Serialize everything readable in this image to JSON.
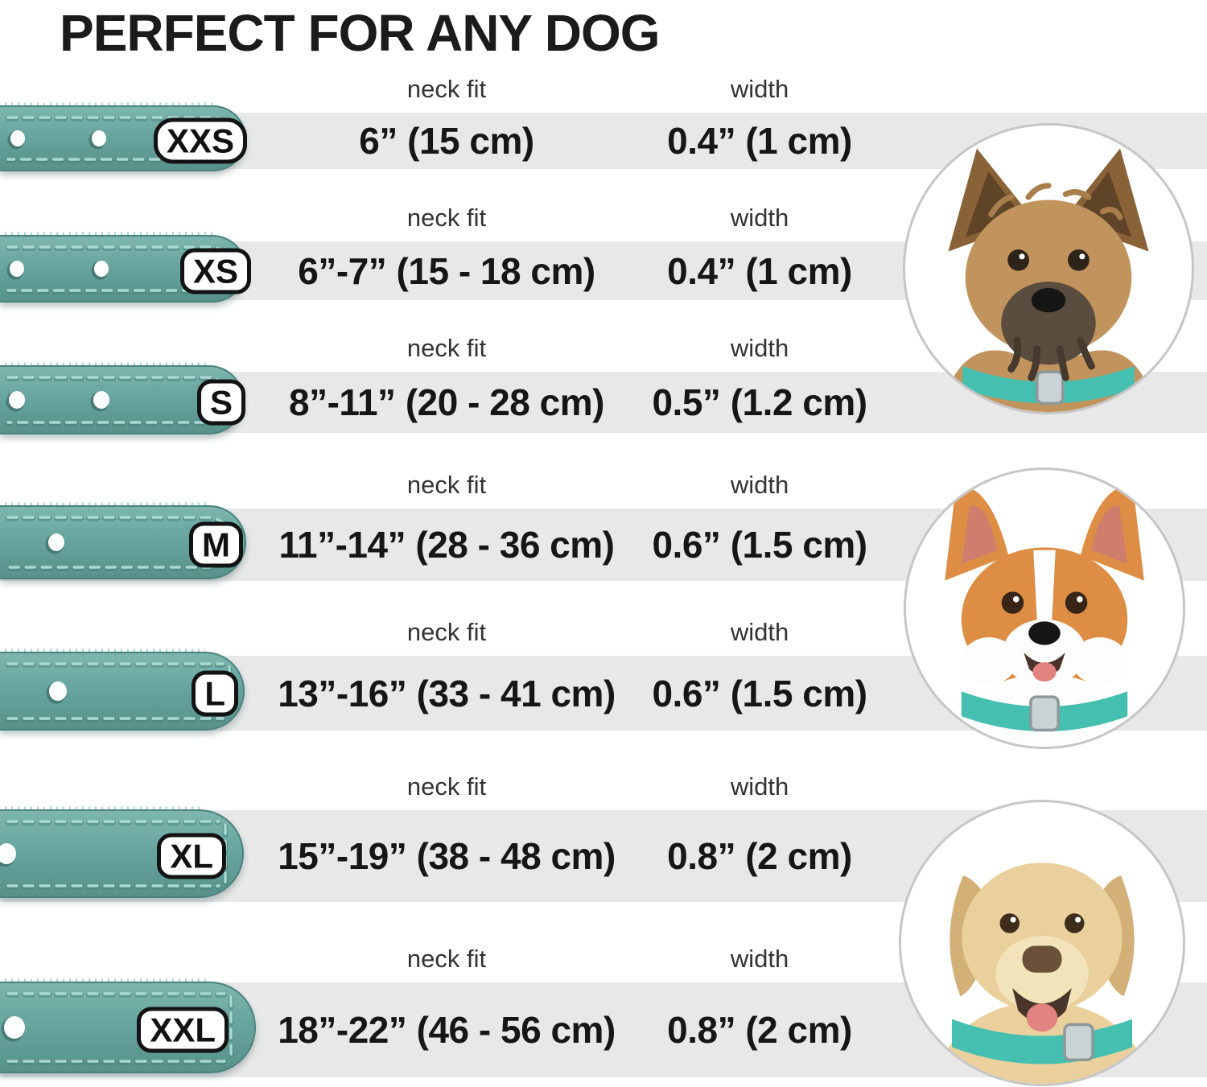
{
  "title": "PERFECT FOR ANY DOG",
  "columns": {
    "neck_fit": "neck fit",
    "width": "width"
  },
  "sizes": [
    {
      "label": "XXS",
      "neck_fit": "6” (15 cm)",
      "width": "0.4” (1 cm)"
    },
    {
      "label": "XS",
      "neck_fit": "6”-7” (15 - 18 cm)",
      "width": "0.4” (1 cm)"
    },
    {
      "label": "S",
      "neck_fit": "8”-11” (20 - 28 cm)",
      "width": "0.5” (1.2 cm)"
    },
    {
      "label": "M",
      "neck_fit": "11”-14” (28 - 36 cm)",
      "width": "0.6” (1.5 cm)"
    },
    {
      "label": "L",
      "neck_fit": "13”-16” (33 - 41 cm)",
      "width": "0.6” (1.5 cm)"
    },
    {
      "label": "XL",
      "neck_fit": "15”-19” (38 - 48 cm)",
      "width": "0.8” (2 cm)"
    },
    {
      "label": "XXL",
      "neck_fit": "18”-22” (46 - 56 cm)",
      "width": "0.8” (2 cm)"
    }
  ],
  "dogs": [
    {
      "photo": "terrier-puppy-wearing-teal-collar"
    },
    {
      "photo": "corgi-wearing-teal-collar"
    },
    {
      "photo": "labrador-wearing-teal-collar"
    }
  ],
  "colors": {
    "collar_teal": "#67a59e",
    "collar_teal_light": "#7eb6af",
    "collar_teal_dark": "#57918a",
    "collar_outline": "#4a837c",
    "collar_stitch": "#abd8d1",
    "photo_collar_teal": "#45c0b0",
    "row_band": "#e8e8e8",
    "text_dark": "#161616",
    "label_grey": "#333333",
    "circle_border": "#c6c6c6"
  }
}
